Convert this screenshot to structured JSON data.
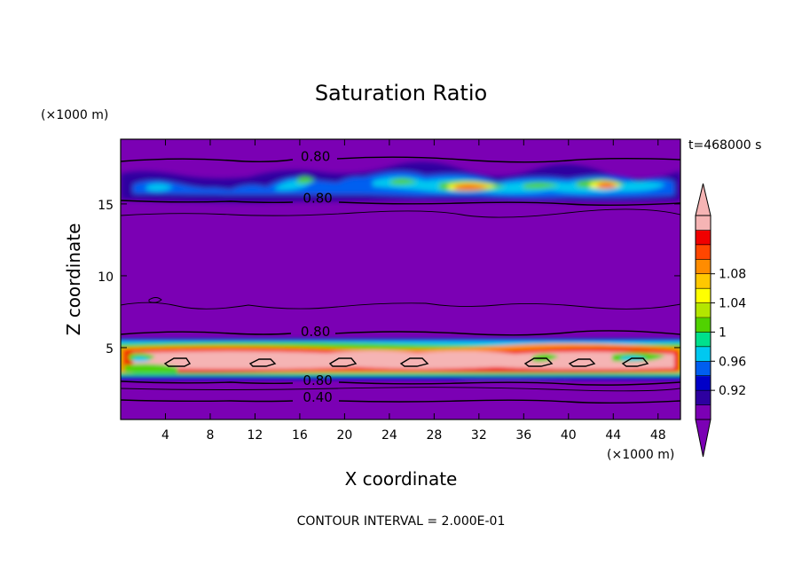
{
  "chart_data": {
    "type": "heatmap",
    "title": "Saturation Ratio",
    "xlabel": "X coordinate",
    "ylabel": "Z coordinate",
    "x_unit": "(×1000 m)",
    "y_unit": "(×1000 m)",
    "time_label": "t=468000 s",
    "footer": "CONTOUR INTERVAL = 2.000E-01",
    "xlim": [
      0,
      50
    ],
    "ylim": [
      0,
      19.5
    ],
    "x_ticks": [
      "4",
      "8",
      "12",
      "16",
      "20",
      "24",
      "28",
      "32",
      "36",
      "40",
      "44",
      "48"
    ],
    "y_ticks": [
      "5",
      "10",
      "15"
    ],
    "colorbar": {
      "tick_labels": [
        "0.92",
        "0.96",
        "1",
        "1.04",
        "1.08"
      ],
      "levels": [
        0.92,
        0.94,
        0.96,
        0.98,
        1.0,
        1.02,
        1.04,
        1.06,
        1.08,
        1.1
      ],
      "colors": [
        "#7b00b4",
        "#2d00a0",
        "#0000c8",
        "#005ef0",
        "#00c8f0",
        "#00e08c",
        "#50d200",
        "#b4e600",
        "#ffff00",
        "#ffc800",
        "#ff8c00",
        "#ff4600",
        "#f00000",
        "#f5b4b4"
      ]
    },
    "contour_labels": [
      {
        "text": "0.80",
        "x": 17.4,
        "z": 18.3
      },
      {
        "text": "0.80",
        "x": 17.6,
        "z": 15.4
      },
      {
        "text": "0.80",
        "x": 17.4,
        "z": 6.1
      },
      {
        "text": "0.80",
        "x": 17.6,
        "z": 2.7
      },
      {
        "text": "0.40",
        "x": 17.6,
        "z": 1.55
      }
    ]
  }
}
